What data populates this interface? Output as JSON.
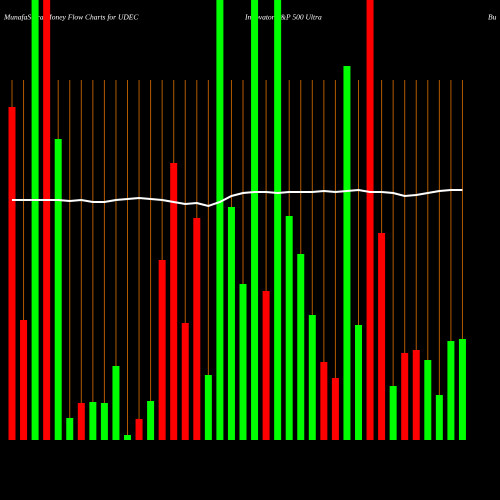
{
  "chart_data": {
    "type": "bar",
    "title": "MunafaSutra Money Flow Charts for UDEC",
    "subtitle": "Innovator S&P 500 Ultra",
    "corner_text": "Bu",
    "values": [
      333,
      120,
      460,
      460,
      301,
      22,
      37,
      38,
      37,
      74,
      5,
      21,
      39,
      180,
      277,
      117,
      222,
      65,
      460,
      233,
      156,
      460,
      149,
      460,
      224,
      186,
      125,
      78,
      62,
      374,
      115,
      460,
      207,
      54,
      87,
      90,
      80,
      45,
      99,
      101
    ],
    "colors": [
      "#ff0000",
      "#ff0000",
      "#00ff00",
      "#ff0000",
      "#00ff00",
      "#00ff00",
      "#ff0000",
      "#00ff00",
      "#00ff00",
      "#00ff00",
      "#00ff00",
      "#ff0000",
      "#00ff00",
      "#ff0000",
      "#ff0000",
      "#ff0000",
      "#ff0000",
      "#00ff00",
      "#00ff00",
      "#00ff00",
      "#00ff00",
      "#00ff00",
      "#ff0000",
      "#00ff00",
      "#00ff00",
      "#00ff00",
      "#00ff00",
      "#ff0000",
      "#ff0000",
      "#00ff00",
      "#00ff00",
      "#ff0000",
      "#ff0000",
      "#00ff00",
      "#ff0000",
      "#ff0000",
      "#00ff00",
      "#00ff00",
      "#00ff00",
      "#00ff00"
    ],
    "line": {
      "color": "#ffffff",
      "values": [
        240,
        240,
        240,
        240,
        240,
        239,
        240,
        238,
        238,
        240,
        241,
        242,
        241,
        240,
        238,
        236,
        237,
        234,
        238,
        244,
        247,
        248,
        248,
        247,
        248,
        248,
        248,
        249,
        248,
        249,
        250,
        248,
        248,
        247,
        244,
        245,
        247,
        249,
        250,
        250
      ]
    },
    "ylim": [
      0,
      440
    ],
    "grid_color": "#b35900"
  }
}
